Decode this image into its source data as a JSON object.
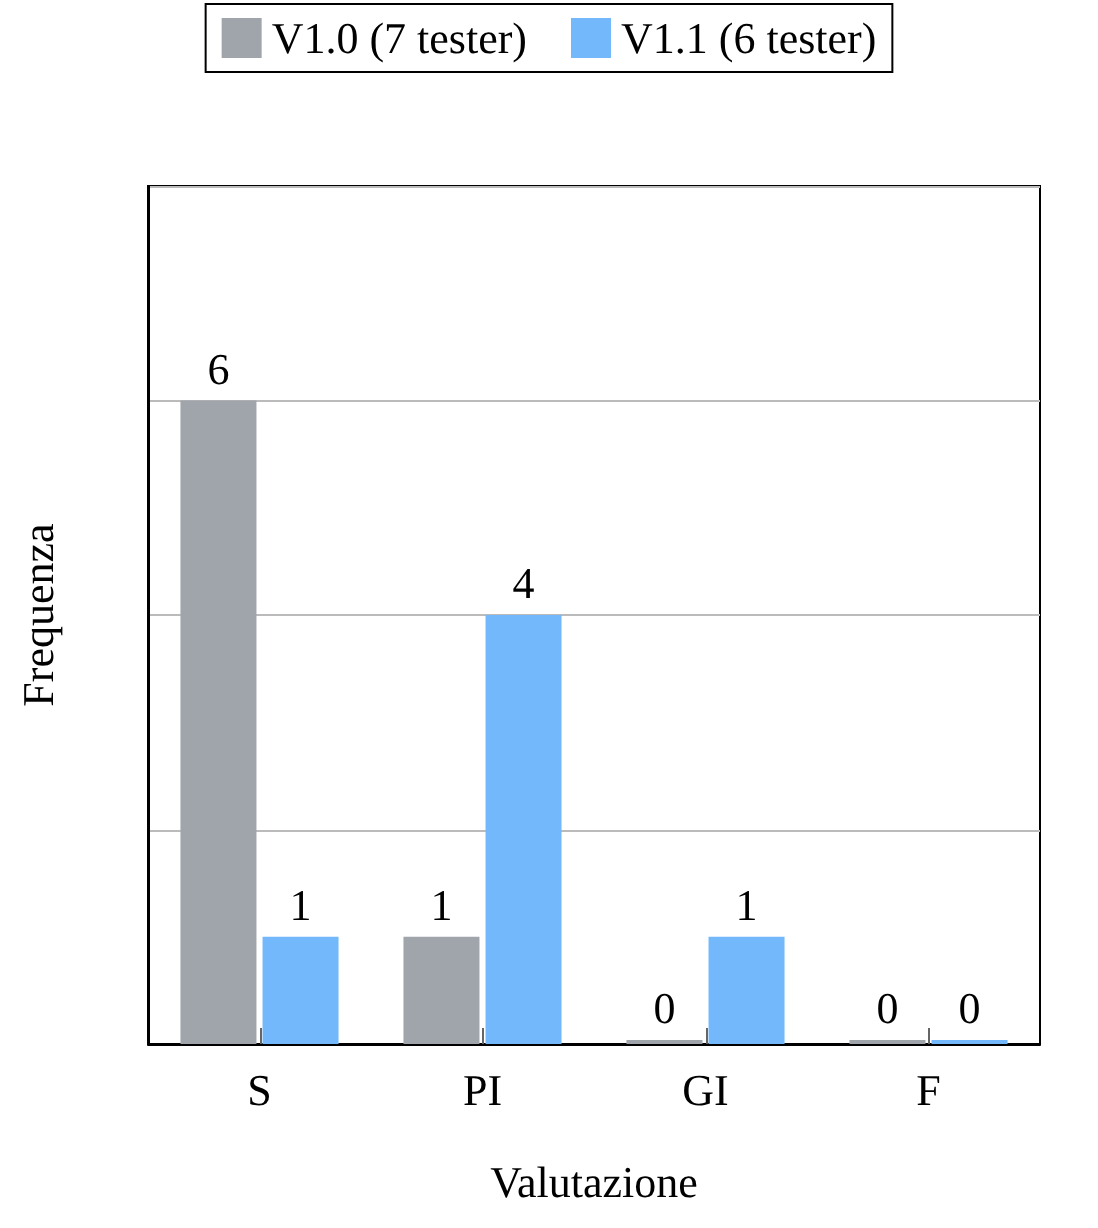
{
  "chart_data": {
    "type": "bar",
    "xlabel": "Valutazione",
    "ylabel": "Frequenza",
    "categories": [
      "S",
      "PI",
      "GI",
      "F"
    ],
    "series": [
      {
        "name": "V1.0 (7 tester)",
        "color": "#a0a4ab",
        "values": [
          6,
          1,
          0,
          0
        ]
      },
      {
        "name": "V1.1 (6 tester)",
        "color": "#72b8fa",
        "values": [
          1,
          4,
          1,
          0
        ]
      }
    ],
    "ylim": [
      0,
      8
    ],
    "yticks": [
      0,
      2,
      4,
      6,
      8
    ],
    "grid": "y",
    "legend": "top",
    "data_labels": true,
    "tick_labels": "x"
  }
}
